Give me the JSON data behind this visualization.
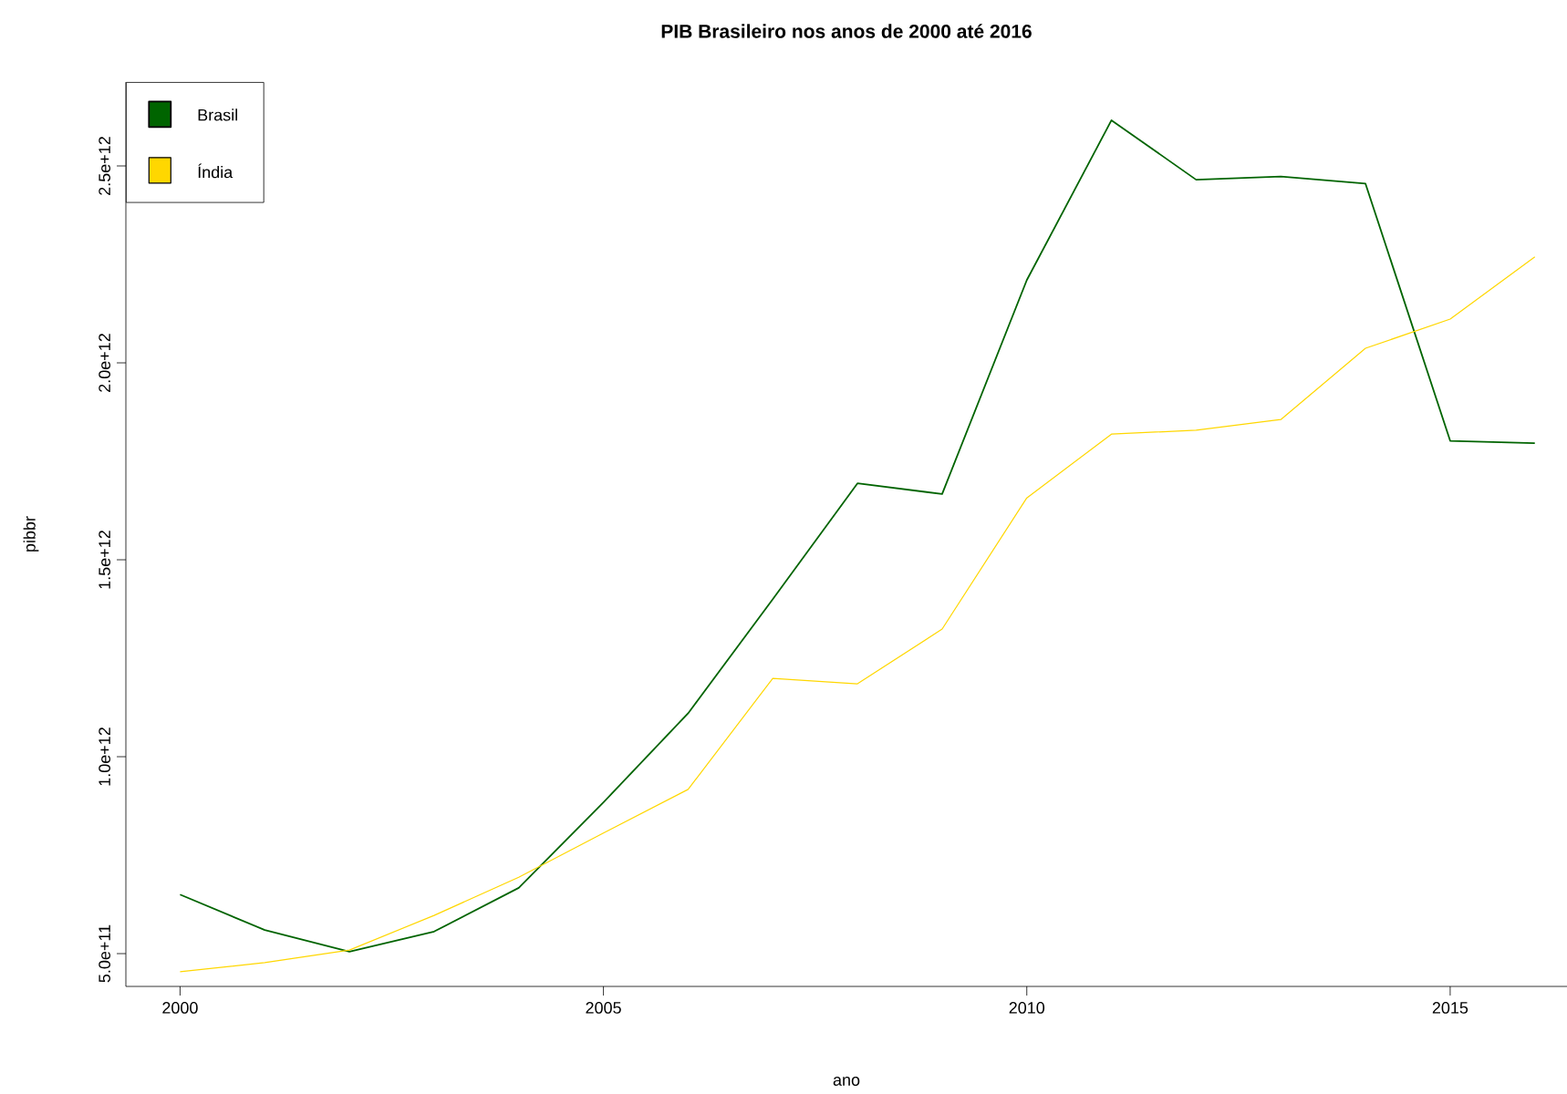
{
  "chart_data": {
    "type": "line",
    "title": "PIB Brasileiro nos anos de 2000 até 2016",
    "xlabel": "ano",
    "ylabel": "pibbr",
    "x": [
      2000,
      2001,
      2002,
      2003,
      2004,
      2005,
      2006,
      2007,
      2008,
      2009,
      2010,
      2011,
      2012,
      2013,
      2014,
      2015,
      2016
    ],
    "series": [
      {
        "name": "Brasil",
        "color": "#006400",
        "values": [
          650000000000,
          560000000000,
          505000000000,
          556000000000,
          667000000000,
          884000000000,
          1110000000000,
          1400000000000,
          1694000000000,
          1667000000000,
          2210000000000,
          2616000000000,
          2465000000000,
          2473000000000,
          2455000000000,
          1802000000000,
          1796000000000
        ]
      },
      {
        "name": "Índia",
        "color": "#ffd700",
        "values": [
          454000000000,
          477000000000,
          509000000000,
          597000000000,
          694000000000,
          806000000000,
          917000000000,
          1199000000000,
          1185000000000,
          1324000000000,
          1657000000000,
          1819000000000,
          1829000000000,
          1856000000000,
          2037000000000,
          2111000000000,
          2269000000000
        ]
      }
    ],
    "xlim": [
      1999.36,
      2016.38
    ],
    "ylim": [
      416700000000,
      2713000000000
    ],
    "xticks": [
      2000,
      2005,
      2010,
      2015
    ],
    "yticks": [
      {
        "value": 500000000000,
        "label": "5.0e+11"
      },
      {
        "value": 1000000000000,
        "label": "1.0e+12"
      },
      {
        "value": 1500000000000,
        "label": "1.5e+12"
      },
      {
        "value": 2000000000000,
        "label": "2.0e+12"
      },
      {
        "value": 2500000000000,
        "label": "2.5e+12"
      }
    ],
    "legend": "top left"
  }
}
